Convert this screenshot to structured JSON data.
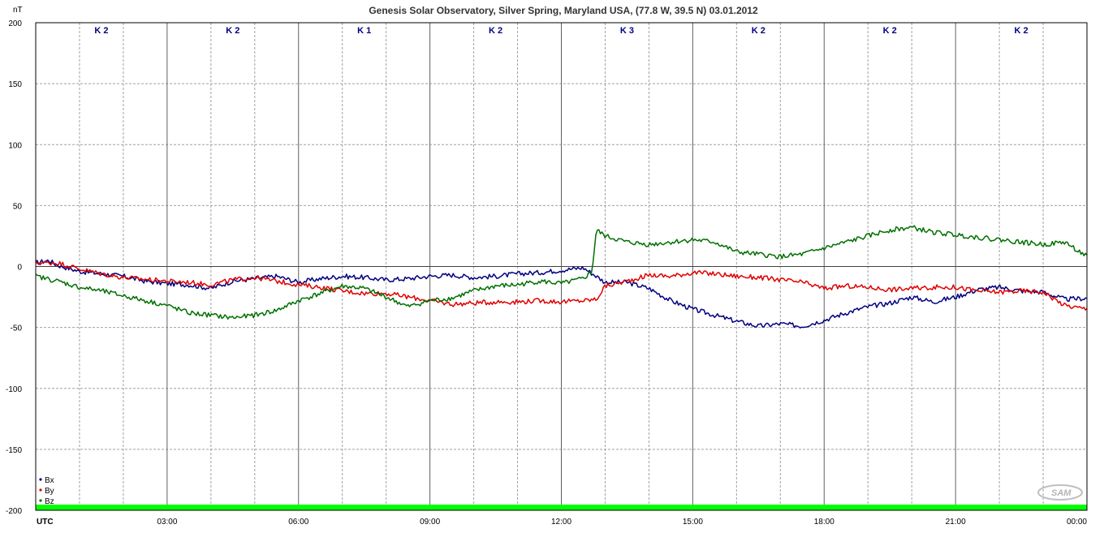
{
  "chart_data": {
    "type": "line",
    "title": "Genesis Solar Observatory, Silver Spring, Maryland USA, (77.8 W, 39.5 N)  03.01.2012",
    "ylabel": "nT",
    "xlabel": "UTC",
    "ylim": [
      -200,
      200
    ],
    "xlim": [
      0,
      24
    ],
    "y_ticks": [
      "200",
      "150",
      "100",
      "50",
      "0",
      "-50",
      "-100",
      "-150",
      "-200"
    ],
    "x_ticks": [
      "03:00",
      "06:00",
      "09:00",
      "12:00",
      "15:00",
      "18:00",
      "21:00",
      "00:00"
    ],
    "k_index": [
      "K 2",
      "K 2",
      "K 1",
      "K 2",
      "K 3",
      "K 2",
      "K 2",
      "K 2"
    ],
    "grid": true,
    "legend": "bottom-left",
    "series": [
      {
        "name": "Bx",
        "color": "#000080",
        "points": [
          [
            0,
            3
          ],
          [
            0.3,
            5
          ],
          [
            0.5,
            1
          ],
          [
            1,
            -4
          ],
          [
            1.5,
            -6
          ],
          [
            2,
            -8
          ],
          [
            2.5,
            -12
          ],
          [
            3,
            -14
          ],
          [
            3.5,
            -15
          ],
          [
            4,
            -18
          ],
          [
            4.5,
            -12
          ],
          [
            5,
            -10
          ],
          [
            5.5,
            -8
          ],
          [
            6,
            -13
          ],
          [
            6.5,
            -10
          ],
          [
            7,
            -8
          ],
          [
            7.5,
            -9
          ],
          [
            8,
            -11
          ],
          [
            8.5,
            -10
          ],
          [
            9,
            -8
          ],
          [
            9.5,
            -7
          ],
          [
            10,
            -9
          ],
          [
            10.5,
            -8
          ],
          [
            11,
            -6
          ],
          [
            11.5,
            -5
          ],
          [
            12,
            -3
          ],
          [
            12.5,
            -1
          ],
          [
            12.8,
            -8
          ],
          [
            13,
            -13
          ],
          [
            13.5,
            -13
          ],
          [
            14,
            -18
          ],
          [
            14.5,
            -28
          ],
          [
            15,
            -35
          ],
          [
            15.5,
            -40
          ],
          [
            16,
            -45
          ],
          [
            16.5,
            -49
          ],
          [
            17,
            -47
          ],
          [
            17.5,
            -49
          ],
          [
            18,
            -44
          ],
          [
            18.5,
            -38
          ],
          [
            19,
            -33
          ],
          [
            19.5,
            -30
          ],
          [
            20,
            -25
          ],
          [
            20.5,
            -29
          ],
          [
            21,
            -25
          ],
          [
            21.5,
            -19
          ],
          [
            22,
            -17
          ],
          [
            22.5,
            -20
          ],
          [
            23,
            -21
          ],
          [
            23.5,
            -27
          ],
          [
            24,
            -26
          ]
        ]
      },
      {
        "name": "By",
        "color": "#e00000",
        "points": [
          [
            0,
            3
          ],
          [
            0.5,
            3
          ],
          [
            1,
            -2
          ],
          [
            1.5,
            -6
          ],
          [
            2,
            -9
          ],
          [
            3,
            -12
          ],
          [
            3.5,
            -13
          ],
          [
            4,
            -15
          ],
          [
            4.5,
            -11
          ],
          [
            5,
            -9
          ],
          [
            5.5,
            -12
          ],
          [
            6,
            -15
          ],
          [
            6.5,
            -17
          ],
          [
            7,
            -20
          ],
          [
            7.5,
            -22
          ],
          [
            8,
            -22
          ],
          [
            8.5,
            -25
          ],
          [
            9,
            -28
          ],
          [
            9.5,
            -31
          ],
          [
            10,
            -30
          ],
          [
            10.5,
            -29
          ],
          [
            11,
            -29
          ],
          [
            11.5,
            -28
          ],
          [
            12,
            -29
          ],
          [
            12.5,
            -28
          ],
          [
            12.8,
            -27
          ],
          [
            13,
            -16
          ],
          [
            13.5,
            -12
          ],
          [
            14,
            -7
          ],
          [
            14.5,
            -8
          ],
          [
            15,
            -5
          ],
          [
            15.5,
            -6
          ],
          [
            16,
            -8
          ],
          [
            16.5,
            -9
          ],
          [
            17,
            -11
          ],
          [
            17.5,
            -13
          ],
          [
            18,
            -18
          ],
          [
            18.5,
            -16
          ],
          [
            19,
            -17
          ],
          [
            19.5,
            -19
          ],
          [
            20,
            -18
          ],
          [
            20.5,
            -17
          ],
          [
            21,
            -17
          ],
          [
            21.5,
            -20
          ],
          [
            22,
            -21
          ],
          [
            22.5,
            -20
          ],
          [
            23,
            -21
          ],
          [
            23.5,
            -32
          ],
          [
            24,
            -35
          ]
        ]
      },
      {
        "name": "Bz",
        "color": "#007000",
        "points": [
          [
            0,
            -8
          ],
          [
            0.5,
            -12
          ],
          [
            1,
            -17
          ],
          [
            1.5,
            -20
          ],
          [
            2,
            -24
          ],
          [
            2.5,
            -28
          ],
          [
            3,
            -32
          ],
          [
            3.5,
            -38
          ],
          [
            4,
            -40
          ],
          [
            4.5,
            -42
          ],
          [
            5,
            -40
          ],
          [
            5.5,
            -36
          ],
          [
            6,
            -28
          ],
          [
            6.5,
            -22
          ],
          [
            7,
            -16
          ],
          [
            7.5,
            -18
          ],
          [
            8,
            -25
          ],
          [
            8.5,
            -33
          ],
          [
            9,
            -28
          ],
          [
            9.5,
            -26
          ],
          [
            10,
            -20
          ],
          [
            10.5,
            -16
          ],
          [
            11,
            -15
          ],
          [
            11.5,
            -12
          ],
          [
            12,
            -14
          ],
          [
            12.5,
            -10
          ],
          [
            12.7,
            -4
          ],
          [
            12.8,
            30
          ],
          [
            13,
            25
          ],
          [
            13.5,
            20
          ],
          [
            14,
            18
          ],
          [
            14.5,
            20
          ],
          [
            15,
            22
          ],
          [
            15.5,
            20
          ],
          [
            16,
            12
          ],
          [
            16.5,
            10
          ],
          [
            17,
            8
          ],
          [
            17.5,
            10
          ],
          [
            18,
            15
          ],
          [
            18.5,
            20
          ],
          [
            19,
            25
          ],
          [
            19.5,
            30
          ],
          [
            20,
            32
          ],
          [
            20.5,
            28
          ],
          [
            21,
            26
          ],
          [
            21.5,
            24
          ],
          [
            22,
            22
          ],
          [
            22.5,
            20
          ],
          [
            23,
            18
          ],
          [
            23.5,
            20
          ],
          [
            24,
            8
          ]
        ]
      }
    ]
  },
  "logo": "SAM"
}
